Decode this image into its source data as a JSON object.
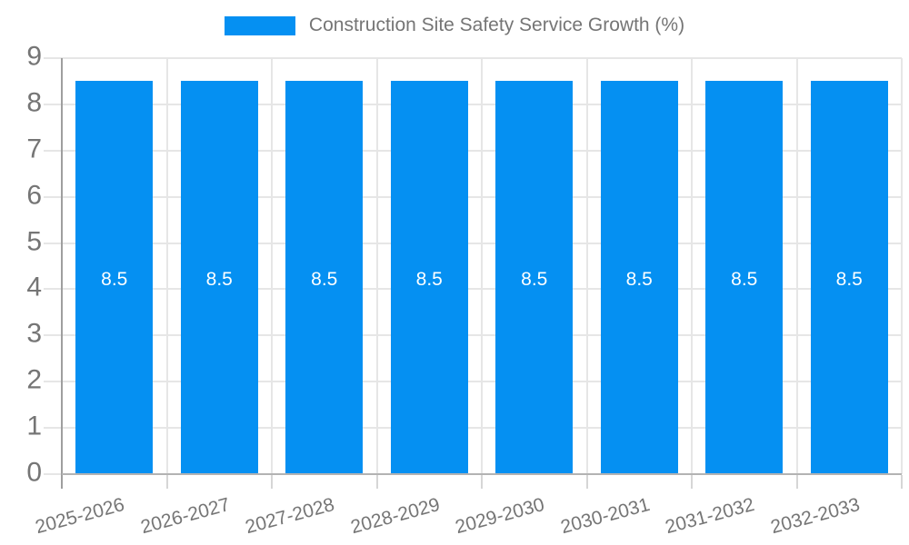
{
  "legend": {
    "label": "Construction Site Safety Service Growth (%)",
    "swatch_icon": "legend-color-swatch"
  },
  "colors": {
    "bar": "#0590F2",
    "bar_label": "#ffffff",
    "axis_text": "#757575",
    "grid": "#e6e6e6",
    "y_axis_line": "#9e9e9e",
    "x_axis_line": "#b3b3b3",
    "tick": "#d6d6d6",
    "background": "#ffffff"
  },
  "chart_data": {
    "type": "bar",
    "title": "Construction Site Safety Service Growth (%)",
    "series": [
      {
        "name": "Construction Site Safety Service Growth (%)",
        "values": [
          8.5,
          8.5,
          8.5,
          8.5,
          8.5,
          8.5,
          8.5,
          8.5
        ]
      }
    ],
    "categories": [
      "2025-2026",
      "2026-2027",
      "2027-2028",
      "2028-2029",
      "2029-2030",
      "2030-2031",
      "2031-2032",
      "2032-2033"
    ],
    "bar_value_labels": [
      "8.5",
      "8.5",
      "8.5",
      "8.5",
      "8.5",
      "8.5",
      "8.5",
      "8.5"
    ],
    "xlabel": "",
    "ylabel": "",
    "ylim": [
      0,
      9
    ],
    "yticks": [
      "0",
      "1",
      "2",
      "3",
      "4",
      "5",
      "6",
      "7",
      "8",
      "9"
    ],
    "grid": true,
    "legend_position": "top-center",
    "value_label_position": "center",
    "x_label_rotation_deg": -15
  }
}
